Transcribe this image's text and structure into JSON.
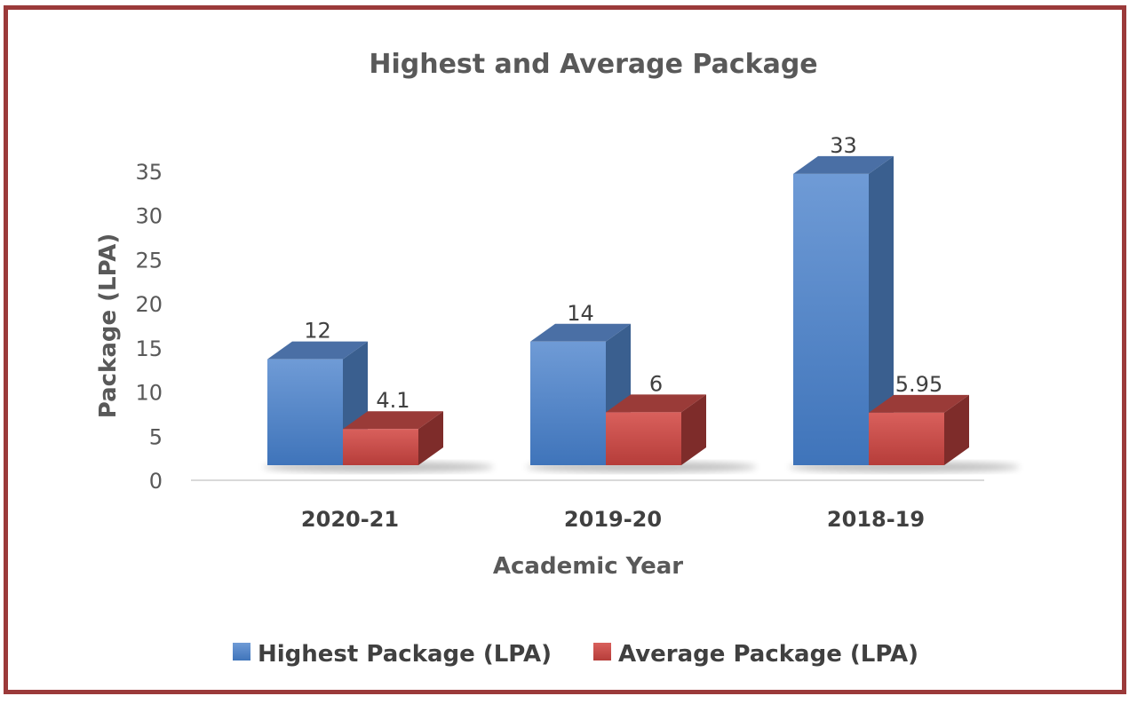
{
  "chart_data": {
    "type": "bar",
    "title": "Highest and Average Package",
    "xlabel": "Academic Year",
    "ylabel": "Package (LPA)",
    "categories": [
      "2020-21",
      "2019-20",
      "2018-19"
    ],
    "ylim": [
      0,
      35
    ],
    "yticks": [
      "0",
      "5",
      "10",
      "15",
      "20",
      "25",
      "30",
      "35"
    ],
    "series": [
      {
        "name": "Highest Package (LPA)",
        "values": [
          12,
          14,
          33
        ],
        "labels": [
          "12",
          "14",
          "33"
        ],
        "color": "#4f81bd"
      },
      {
        "name": "Average Package (LPA)",
        "values": [
          4.1,
          6,
          5.95
        ],
        "labels": [
          "4.1",
          "6",
          "5.95"
        ],
        "color": "#c0504d"
      }
    ],
    "legend_position": "bottom",
    "grid": false,
    "style": "3d-column"
  }
}
